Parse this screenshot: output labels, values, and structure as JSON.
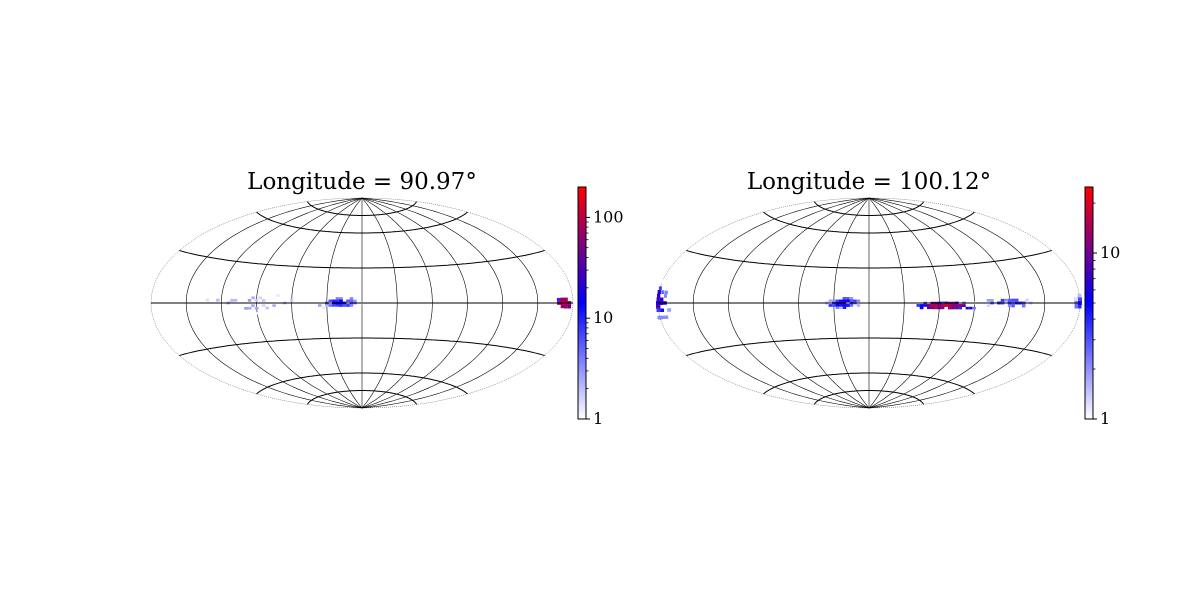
{
  "chart_data": [
    {
      "type": "heatmap",
      "projection": "aitoff",
      "title": "Longitude = 90.97°",
      "grid": true,
      "colormap": [
        "#ffffff",
        "#0000ff",
        "#ff0000"
      ],
      "colorbar": {
        "scale": "log",
        "range": [
          1,
          200
        ],
        "ticks": [
          1,
          10,
          100
        ],
        "tick_labels": [
          "1",
          "10",
          "100"
        ]
      },
      "clusters": [
        {
          "lon": -20,
          "lat": 0,
          "dlon": 20,
          "dlat": 5,
          "peak": 12,
          "count": 60
        },
        {
          "lon": 173,
          "lat": 0,
          "dlon": 8,
          "dlat": 3,
          "peak": 150,
          "count": 40
        },
        {
          "lon": -95,
          "lat": 0,
          "dlon": 70,
          "dlat": 10,
          "peak": 3,
          "count": 30
        }
      ]
    },
    {
      "type": "heatmap",
      "projection": "aitoff",
      "title": "Longitude = 100.12°",
      "grid": true,
      "colormap": [
        "#ffffff",
        "#0000ff",
        "#ff0000"
      ],
      "colorbar": {
        "scale": "log",
        "range": [
          1,
          25
        ],
        "ticks": [
          1,
          10
        ],
        "tick_labels": [
          "1",
          "10"
        ]
      },
      "clusters": [
        {
          "lon": -180,
          "lat": 0,
          "dlon": 10,
          "dlat": 12,
          "peak": 8,
          "count": 60
        },
        {
          "lon": 180,
          "lat": 0,
          "dlon": 6,
          "dlat": 6,
          "peak": 6,
          "count": 20
        },
        {
          "lon": -22,
          "lat": 0,
          "dlon": 18,
          "dlat": 6,
          "peak": 7,
          "count": 60
        },
        {
          "lon": 65,
          "lat": -2,
          "dlon": 30,
          "dlat": 3,
          "peak": 20,
          "count": 120
        },
        {
          "lon": 120,
          "lat": 0,
          "dlon": 35,
          "dlat": 4,
          "peak": 4,
          "count": 40
        }
      ]
    }
  ]
}
